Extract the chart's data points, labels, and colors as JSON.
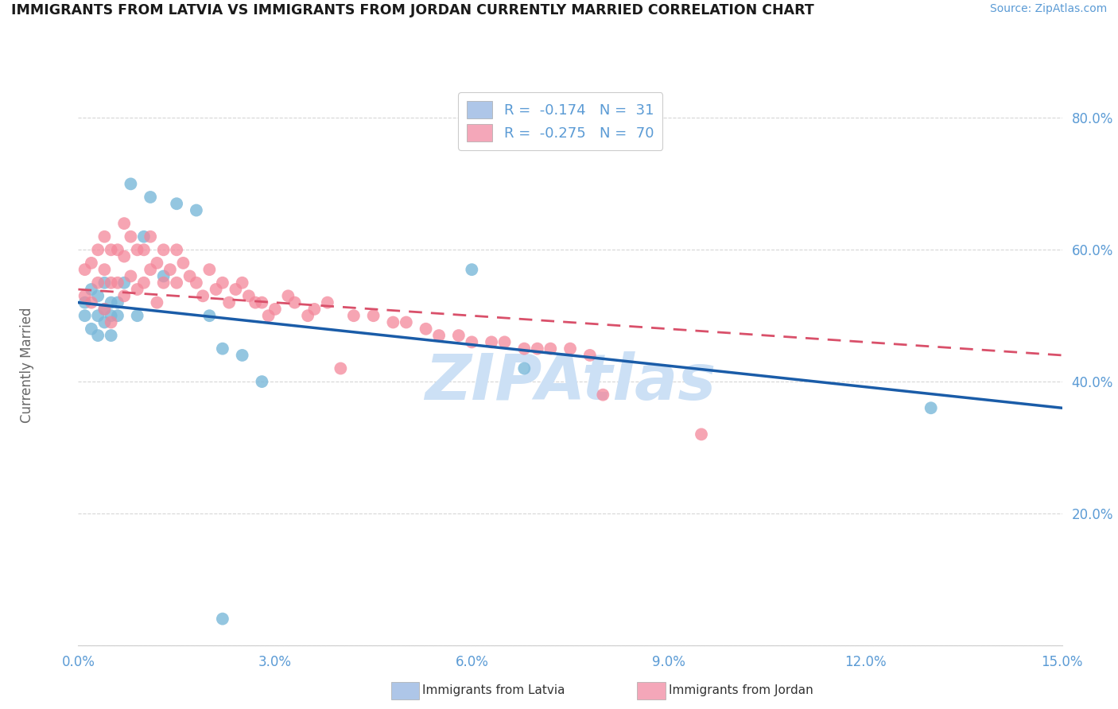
{
  "title": "IMMIGRANTS FROM LATVIA VS IMMIGRANTS FROM JORDAN CURRENTLY MARRIED CORRELATION CHART",
  "source": "Source: ZipAtlas.com",
  "ylabel": "Currently Married",
  "xlim": [
    0.0,
    0.15
  ],
  "ylim": [
    0.0,
    0.85
  ],
  "xticks": [
    0.0,
    0.03,
    0.06,
    0.09,
    0.12,
    0.15
  ],
  "yticks": [
    0.0,
    0.2,
    0.4,
    0.6,
    0.8
  ],
  "ytick_labels": [
    "",
    "20.0%",
    "40.0%",
    "60.0%",
    "80.0%"
  ],
  "xtick_labels": [
    "0.0%",
    "3.0%",
    "6.0%",
    "9.0%",
    "12.0%",
    "15.0%"
  ],
  "legend_entries": [
    {
      "label": "R =  -0.174   N =  31",
      "color": "#aec6e8"
    },
    {
      "label": "R =  -0.275   N =  70",
      "color": "#f4a7b9"
    }
  ],
  "footer_labels": [
    "Immigrants from Latvia",
    "Immigrants from Jordan"
  ],
  "footer_colors": [
    "#aec6e8",
    "#f4a7b9"
  ],
  "blue_color": "#7ab8d9",
  "pink_color": "#f4879a",
  "regression_blue": "#1a5ca8",
  "regression_pink": "#d9506a",
  "watermark": "ZIPAtlas",
  "watermark_color": "#cce0f5",
  "background_color": "#ffffff",
  "grid_color": "#cccccc",
  "title_color": "#1a1a1a",
  "axis_color": "#5b9bd5",
  "latvia_x": [
    0.001,
    0.001,
    0.002,
    0.002,
    0.003,
    0.003,
    0.003,
    0.004,
    0.004,
    0.004,
    0.005,
    0.005,
    0.005,
    0.006,
    0.006,
    0.007,
    0.008,
    0.009,
    0.01,
    0.011,
    0.013,
    0.015,
    0.018,
    0.02,
    0.022,
    0.025,
    0.028,
    0.06,
    0.068,
    0.13,
    0.022
  ],
  "latvia_y": [
    0.5,
    0.52,
    0.54,
    0.48,
    0.5,
    0.53,
    0.47,
    0.51,
    0.49,
    0.55,
    0.5,
    0.47,
    0.52,
    0.52,
    0.5,
    0.55,
    0.7,
    0.5,
    0.62,
    0.68,
    0.56,
    0.67,
    0.66,
    0.5,
    0.45,
    0.44,
    0.4,
    0.57,
    0.42,
    0.36,
    0.04
  ],
  "jordan_x": [
    0.001,
    0.001,
    0.002,
    0.002,
    0.003,
    0.003,
    0.004,
    0.004,
    0.004,
    0.005,
    0.005,
    0.005,
    0.006,
    0.006,
    0.007,
    0.007,
    0.007,
    0.008,
    0.008,
    0.009,
    0.009,
    0.01,
    0.01,
    0.011,
    0.011,
    0.012,
    0.012,
    0.013,
    0.013,
    0.014,
    0.015,
    0.015,
    0.016,
    0.017,
    0.018,
    0.019,
    0.02,
    0.021,
    0.022,
    0.023,
    0.024,
    0.025,
    0.026,
    0.027,
    0.028,
    0.029,
    0.03,
    0.032,
    0.033,
    0.035,
    0.036,
    0.038,
    0.04,
    0.042,
    0.045,
    0.048,
    0.05,
    0.053,
    0.055,
    0.058,
    0.06,
    0.063,
    0.065,
    0.068,
    0.07,
    0.072,
    0.075,
    0.078,
    0.08,
    0.095
  ],
  "jordan_y": [
    0.53,
    0.57,
    0.58,
    0.52,
    0.6,
    0.55,
    0.62,
    0.57,
    0.51,
    0.6,
    0.55,
    0.49,
    0.6,
    0.55,
    0.64,
    0.59,
    0.53,
    0.62,
    0.56,
    0.6,
    0.54,
    0.6,
    0.55,
    0.62,
    0.57,
    0.58,
    0.52,
    0.6,
    0.55,
    0.57,
    0.6,
    0.55,
    0.58,
    0.56,
    0.55,
    0.53,
    0.57,
    0.54,
    0.55,
    0.52,
    0.54,
    0.55,
    0.53,
    0.52,
    0.52,
    0.5,
    0.51,
    0.53,
    0.52,
    0.5,
    0.51,
    0.52,
    0.42,
    0.5,
    0.5,
    0.49,
    0.49,
    0.48,
    0.47,
    0.47,
    0.46,
    0.46,
    0.46,
    0.45,
    0.45,
    0.45,
    0.45,
    0.44,
    0.38,
    0.32
  ],
  "latvia_line_x": [
    0.0,
    0.15
  ],
  "latvia_line_y": [
    0.52,
    0.36
  ],
  "jordan_line_x": [
    0.0,
    0.15
  ],
  "jordan_line_y": [
    0.54,
    0.44
  ]
}
